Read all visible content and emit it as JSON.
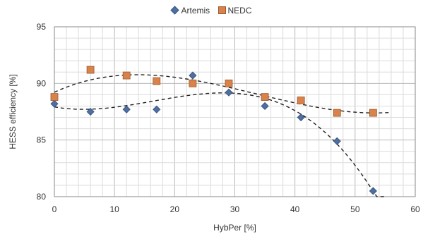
{
  "chart_data": {
    "type": "scatter",
    "xlabel": "HybPer [%]",
    "ylabel": "HESS efficiency [%]",
    "xlim": [
      0,
      60
    ],
    "ylim": [
      80,
      95
    ],
    "x_ticks": [
      "0",
      "10",
      "20",
      "30",
      "40",
      "50",
      "60"
    ],
    "y_ticks": [
      "80",
      "85",
      "90",
      "95"
    ],
    "grid": true,
    "legend_position": "top-center",
    "series": [
      {
        "name": "Artemis",
        "marker": "diamond",
        "color": "#4F6F9F",
        "x": [
          0,
          6,
          12,
          17,
          23,
          29,
          35,
          41,
          47,
          53
        ],
        "y": [
          88.2,
          87.5,
          87.7,
          87.7,
          90.7,
          89.2,
          88.0,
          87.0,
          84.9,
          80.5
        ],
        "trend": {
          "type": "polynomial",
          "line_style": "dashed",
          "x_range": [
            0,
            55
          ]
        }
      },
      {
        "name": "NEDC",
        "marker": "square",
        "color": "#D9834A",
        "x": [
          0,
          6,
          12,
          17,
          23,
          29,
          35,
          41,
          47,
          53
        ],
        "y": [
          88.8,
          91.2,
          90.7,
          90.2,
          90.0,
          90.0,
          88.8,
          88.5,
          87.4,
          87.4
        ],
        "trend": {
          "type": "polynomial",
          "line_style": "dashed",
          "x_range": [
            0,
            56
          ]
        }
      }
    ]
  }
}
